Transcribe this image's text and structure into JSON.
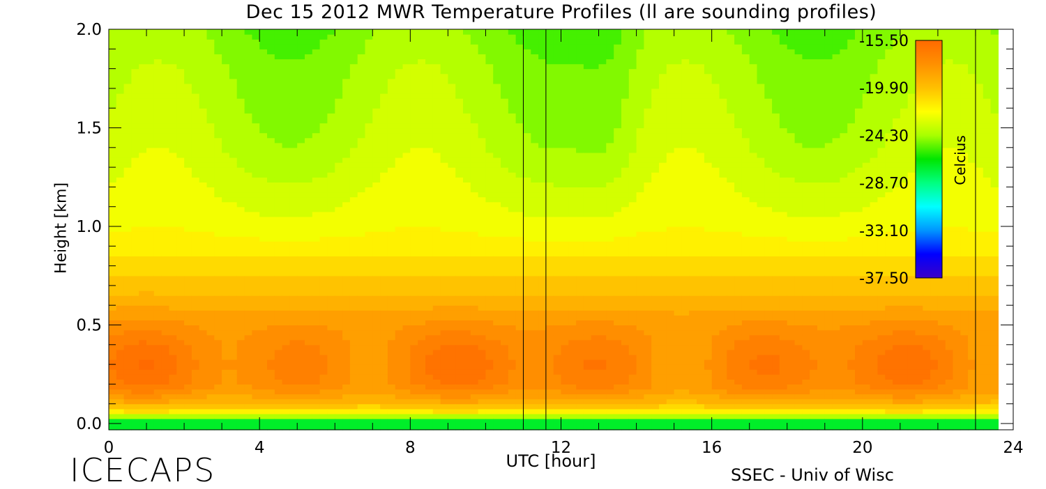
{
  "chart_data": {
    "type": "heatmap",
    "title": "Dec 15 2012 MWR Temperature Profiles (ll are sounding profiles)",
    "xlabel": "UTC [hour]",
    "ylabel": "Height [km]",
    "xlim": [
      0,
      24
    ],
    "ylim": [
      0.0,
      2.0
    ],
    "x_ticks": [
      "0",
      "4",
      "8",
      "12",
      "16",
      "20",
      "24"
    ],
    "y_ticks": [
      "0.0",
      "0.5",
      "1.0",
      "1.5",
      "2.0"
    ],
    "sounding_times": [
      11.0,
      11.6,
      23.0
    ],
    "data_end_hour": 23.6,
    "colorbar": {
      "label": "Celcius",
      "min": -37.5,
      "max": -15.5,
      "tick_labels": [
        "-15.50",
        "-19.90",
        "-24.30",
        "-28.70",
        "-33.10",
        "-37.50"
      ],
      "tick_values": [
        -15.5,
        -19.9,
        -24.3,
        -28.7,
        -33.1,
        -37.5
      ],
      "colors": [
        "#3a00c8",
        "#0000ff",
        "#0096ff",
        "#00ffff",
        "#00ff80",
        "#00e600",
        "#a8ff00",
        "#ffff00",
        "#ffc000",
        "#ff9000",
        "#ff6a00"
      ]
    },
    "profile": {
      "heights_km": [
        0.0,
        0.03,
        0.06,
        0.1,
        0.15,
        0.2,
        0.3,
        0.4,
        0.5,
        0.6,
        0.7,
        0.8,
        0.9,
        1.0,
        1.2,
        1.4,
        1.6,
        1.8,
        2.0
      ],
      "temps_c": [
        -28.5,
        -24.8,
        -21.5,
        -19.5,
        -18.2,
        -17.3,
        -17.0,
        -17.3,
        -18.0,
        -19.0,
        -20.0,
        -20.8,
        -21.6,
        -22.3,
        -23.0,
        -23.6,
        -24.0,
        -24.3,
        -24.8
      ]
    }
  },
  "brand": "ICECAPS",
  "credit": "SSEC - Univ of Wisc"
}
